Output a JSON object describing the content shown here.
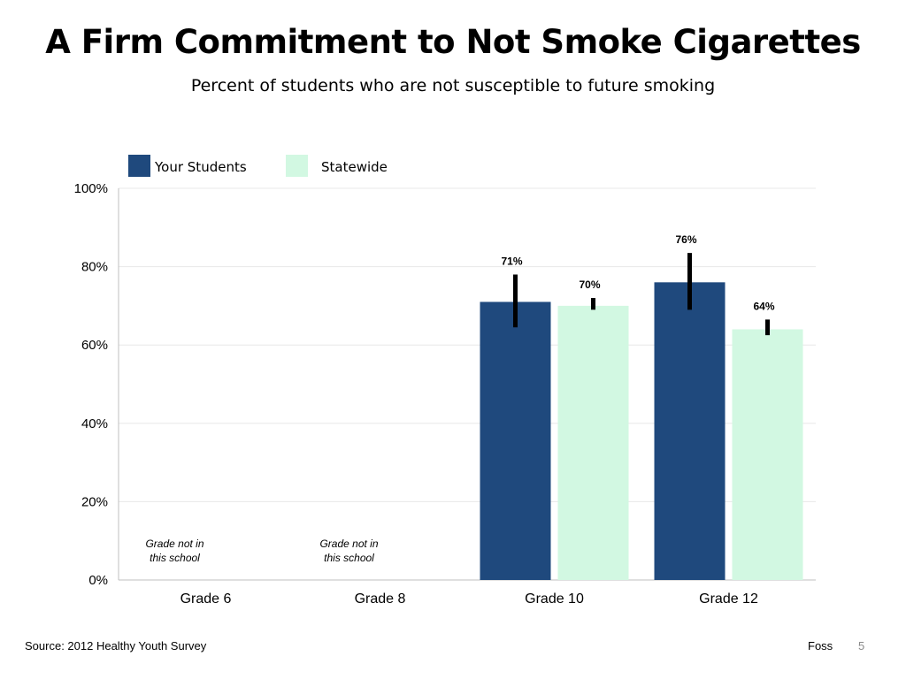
{
  "slide": {
    "title": "A Firm Commitment to Not Smoke Cigarettes",
    "subtitle": "Percent of students who are not susceptible to future smoking",
    "source": "Source: 2012 Healthy Youth Survey",
    "author": "Foss",
    "page_number": "5"
  },
  "chart_data": {
    "type": "bar",
    "categories": [
      "Grade 6",
      "Grade 8",
      "Grade 10",
      "Grade 12"
    ],
    "series": [
      {
        "name": "Your Students",
        "color": "#1f497d",
        "values": [
          null,
          null,
          71,
          76
        ],
        "error_low": [
          null,
          null,
          64.5,
          69
        ],
        "error_high": [
          null,
          null,
          78,
          83.5
        ]
      },
      {
        "name": "Statewide",
        "color": "#d2f8e2",
        "values": [
          null,
          null,
          70,
          64
        ],
        "error_low": [
          null,
          null,
          69,
          62.5
        ],
        "error_high": [
          null,
          null,
          72,
          66.5
        ]
      }
    ],
    "data_labels": [
      [
        null,
        null,
        "71%",
        "76%"
      ],
      [
        null,
        null,
        "70%",
        "64%"
      ]
    ],
    "notes": [
      [
        "Grade not in",
        "this school"
      ],
      [
        "Grade not in",
        "this school"
      ],
      null,
      null
    ],
    "ylim": [
      0,
      100
    ],
    "yticks": [
      0,
      20,
      40,
      60,
      80,
      100
    ],
    "ytick_labels": [
      "0%",
      "20%",
      "40%",
      "60%",
      "80%",
      "100%"
    ],
    "xlabel": "",
    "ylabel": "",
    "grid": true,
    "legend_position": "top-left"
  }
}
